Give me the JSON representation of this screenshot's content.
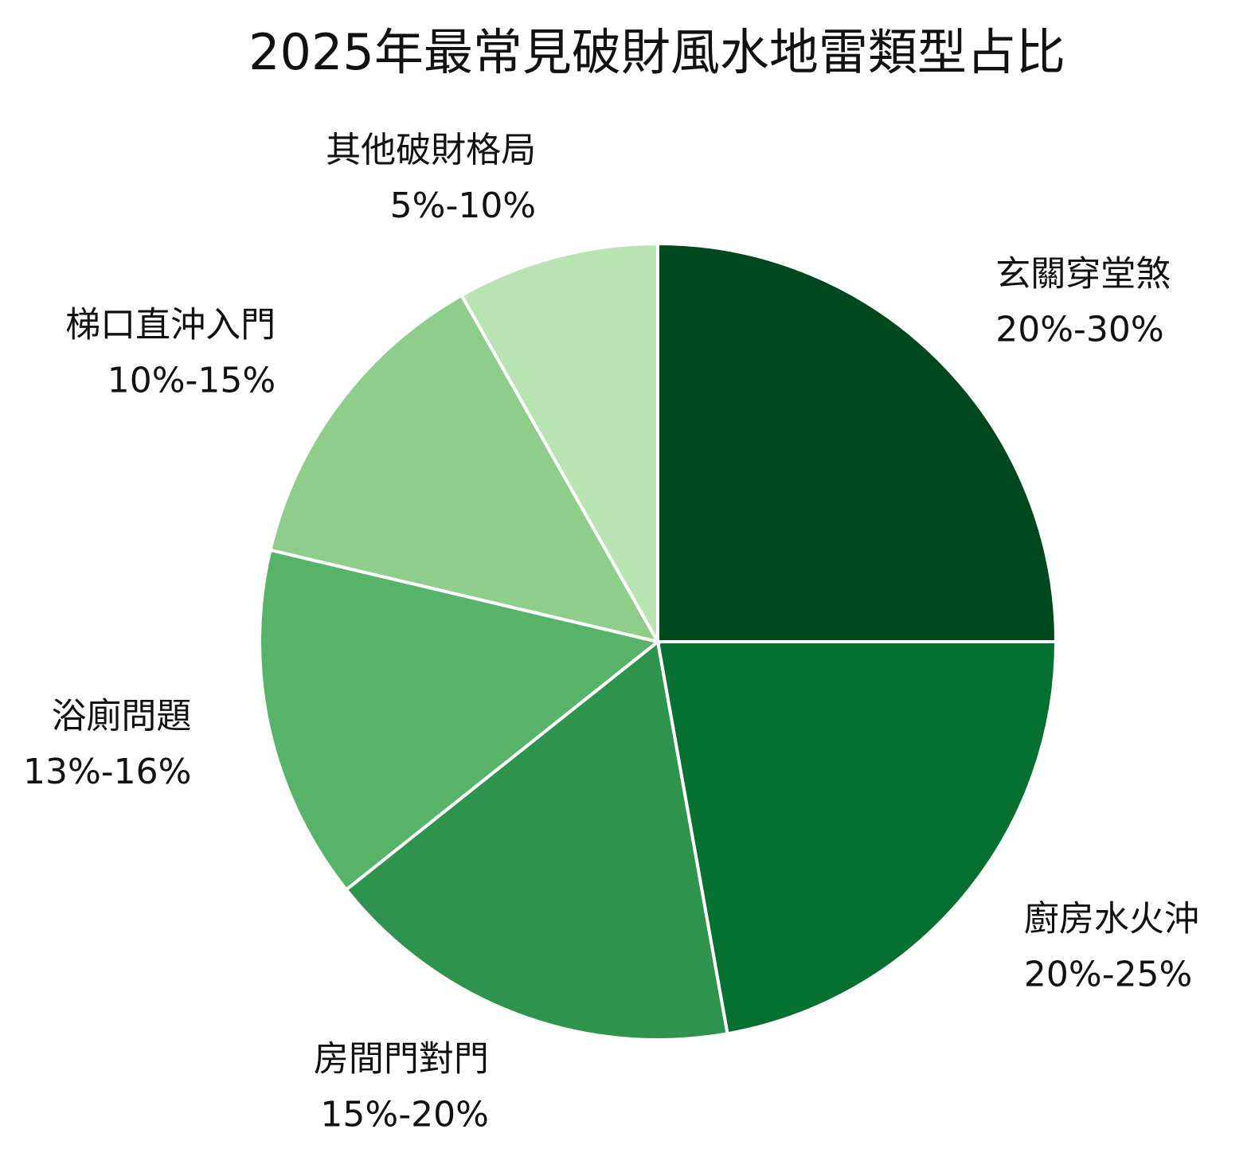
{
  "chart_data": {
    "type": "pie",
    "title": "2025年最常見破財風水地雷類型占比",
    "categories": [
      "玄關穿堂煞",
      "廚房水火沖",
      "房間門對門",
      "浴廁問題",
      "梯口直沖入門",
      "其他破財格局"
    ],
    "range_labels": [
      "20%-30%",
      "20%-25%",
      "15%-20%",
      "13%-16%",
      "10%-15%",
      "5%-10%"
    ],
    "values": [
      25,
      22.2,
      17.1,
      14.4,
      13.1,
      8.2
    ],
    "colors": [
      "#00491e",
      "#067030",
      "#2e934d",
      "#57b36a",
      "#8fce8a",
      "#b9e3b3"
    ]
  }
}
